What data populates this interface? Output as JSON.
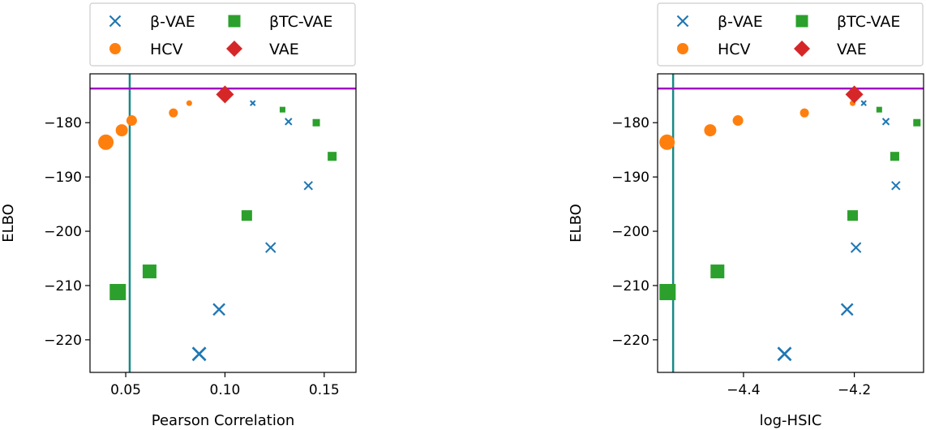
{
  "colors": {
    "beta_vae": "#1f77b4",
    "hcv": "#ff7f0e",
    "beta_tc_vae": "#2ca02c",
    "vae": "#d62728",
    "hline": "#a010c0",
    "vline": "#178a87"
  },
  "legend": [
    {
      "key": "beta_vae",
      "marker": "x",
      "label": "β-VAE"
    },
    {
      "key": "beta_tc_vae",
      "marker": "square",
      "label": "βTC-VAE"
    },
    {
      "key": "hcv",
      "marker": "circle",
      "label": "HCV"
    },
    {
      "key": "vae",
      "marker": "diamond",
      "label": "VAE"
    }
  ],
  "chart_data": [
    {
      "type": "scatter",
      "title": "",
      "xlabel": "Pearson Correlation",
      "ylabel": "ELBO",
      "xlim": [
        0.032,
        0.166
      ],
      "ylim": [
        -226,
        -171
      ],
      "xticks": [
        0.05,
        0.1,
        0.15
      ],
      "xtick_labels": [
        "0.05",
        "0.10",
        "0.15"
      ],
      "yticks": [
        -180,
        -190,
        -200,
        -210,
        -220
      ],
      "ytick_labels": [
        "−180",
        "−190",
        "−200",
        "−210",
        "−220"
      ],
      "hline": -173.7,
      "vline": 0.052,
      "series": [
        {
          "name": "β-VAE",
          "key": "beta_vae",
          "marker": "x",
          "points": [
            [
              0.114,
              -176.4
            ],
            [
              0.132,
              -179.8
            ],
            [
              0.142,
              -191.6
            ],
            [
              0.123,
              -203.0
            ],
            [
              0.097,
              -214.4
            ],
            [
              0.087,
              -222.6
            ]
          ],
          "sizes": [
            6,
            8,
            10,
            12,
            14,
            16
          ]
        },
        {
          "name": "HCV",
          "key": "hcv",
          "marker": "circle",
          "points": [
            [
              0.082,
              -176.4
            ],
            [
              0.074,
              -178.2
            ],
            [
              0.053,
              -179.6
            ],
            [
              0.048,
              -181.4
            ],
            [
              0.04,
              -183.6
            ]
          ],
          "sizes": [
            7,
            11,
            13,
            15,
            19
          ]
        },
        {
          "name": "βTC-VAE",
          "key": "beta_tc_vae",
          "marker": "square",
          "points": [
            [
              0.129,
              -177.6
            ],
            [
              0.146,
              -180.0
            ],
            [
              0.154,
              -186.2
            ],
            [
              0.111,
              -197.1
            ],
            [
              0.062,
              -207.4
            ],
            [
              0.046,
              -211.2
            ]
          ],
          "sizes": [
            7,
            9,
            11,
            13,
            17,
            20
          ]
        },
        {
          "name": "VAE",
          "key": "vae",
          "marker": "diamond",
          "points": [
            [
              0.1,
              -174.8
            ]
          ],
          "sizes": [
            22
          ]
        }
      ]
    },
    {
      "type": "scatter",
      "title": "",
      "xlabel": "log-HSIC",
      "ylabel": "ELBO",
      "xlim": [
        -4.555,
        -4.075
      ],
      "ylim": [
        -226,
        -171
      ],
      "xticks": [
        -4.4,
        -4.2
      ],
      "xtick_labels": [
        "−4.4",
        "−4.2"
      ],
      "yticks": [
        -180,
        -190,
        -200,
        -210,
        -220
      ],
      "ytick_labels": [
        "−180",
        "−190",
        "−200",
        "−210",
        "−220"
      ],
      "hline": -173.7,
      "vline": -4.527,
      "series": [
        {
          "name": "β-VAE",
          "key": "beta_vae",
          "marker": "x",
          "points": [
            [
              -4.183,
              -176.4
            ],
            [
              -4.143,
              -179.8
            ],
            [
              -4.125,
              -191.6
            ],
            [
              -4.197,
              -203.0
            ],
            [
              -4.213,
              -214.4
            ],
            [
              -4.326,
              -222.6
            ]
          ],
          "sizes": [
            6,
            8,
            10,
            12,
            14,
            16
          ]
        },
        {
          "name": "HCV",
          "key": "hcv",
          "marker": "circle",
          "points": [
            [
              -4.203,
              -176.4
            ],
            [
              -4.29,
              -178.2
            ],
            [
              -4.41,
              -179.6
            ],
            [
              -4.46,
              -181.4
            ],
            [
              -4.538,
              -183.6
            ]
          ],
          "sizes": [
            7,
            11,
            13,
            15,
            19
          ]
        },
        {
          "name": "βTC-VAE",
          "key": "beta_tc_vae",
          "marker": "square",
          "points": [
            [
              -4.155,
              -177.6
            ],
            [
              -4.087,
              -180.0
            ],
            [
              -4.127,
              -186.2
            ],
            [
              -4.203,
              -197.1
            ],
            [
              -4.447,
              -207.4
            ],
            [
              -4.537,
              -211.2
            ]
          ],
          "sizes": [
            7,
            9,
            11,
            13,
            17,
            20
          ]
        },
        {
          "name": "VAE",
          "key": "vae",
          "marker": "diamond",
          "points": [
            [
              -4.2,
              -174.8
            ]
          ],
          "sizes": [
            22
          ]
        }
      ]
    }
  ]
}
